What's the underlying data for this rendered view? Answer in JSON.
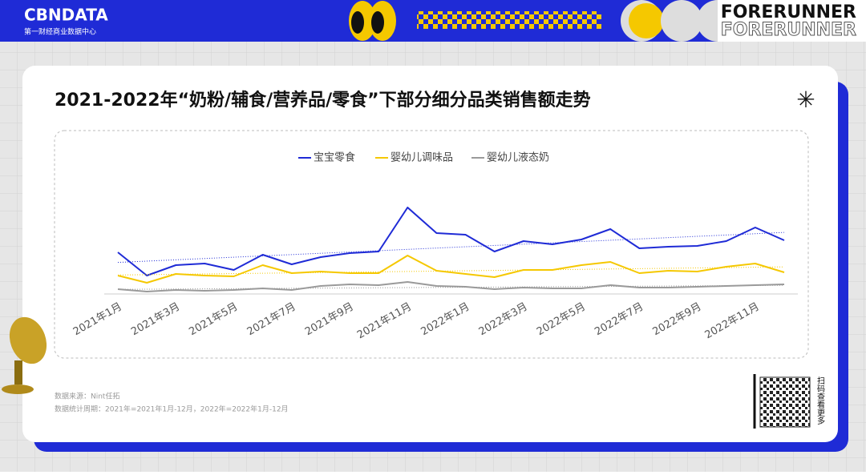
{
  "header": {
    "brand": "CBNDATA",
    "brand_subtitle": "第一财经商业数据中心",
    "tag": "FORERUNNER",
    "tag_outline": "FORERUNNER"
  },
  "chart_data": {
    "type": "line",
    "title": "2021-2022年“奶粉/辅食/营养品/零食”下部分细分品类销售额走势",
    "categories": [
      "2021年1月",
      null,
      "2021年3月",
      null,
      "2021年5月",
      null,
      "2021年7月",
      null,
      "2021年9月",
      null,
      "2021年11月",
      null,
      "2022年1月",
      null,
      "2022年3月",
      null,
      "2022年5月",
      null,
      "2022年7月",
      null,
      "2022年9月",
      null,
      "2022年11月",
      null
    ],
    "series": [
      {
        "name": "宝宝零食",
        "color": "#1f2bd6",
        "values": [
          52,
          23,
          36,
          38,
          30,
          49,
          37,
          46,
          51,
          53,
          108,
          76,
          74,
          53,
          66,
          62,
          68,
          81,
          57,
          59,
          60,
          66,
          83,
          67
        ]
      },
      {
        "name": "婴幼儿调味品",
        "color": "#f5c800",
        "values": [
          23,
          14,
          25,
          23,
          22,
          36,
          26,
          28,
          26,
          26,
          48,
          29,
          25,
          21,
          30,
          30,
          36,
          40,
          26,
          29,
          28,
          34,
          38,
          27
        ]
      },
      {
        "name": "婴幼儿液态奶",
        "color": "#9a9a9a",
        "values": [
          6,
          3,
          5,
          4,
          5,
          7,
          5,
          10,
          12,
          11,
          15,
          10,
          9,
          6,
          8,
          7,
          7,
          11,
          8,
          8,
          9,
          10,
          11,
          12
        ]
      }
    ],
    "ylim": [
      0,
      120
    ],
    "trendline": true,
    "legend": "top"
  },
  "footer": {
    "source": "数据来源：Nint任拓",
    "period": "数据统计周期：2021年=2021年1月-12月，2022年=2022年1月-12月",
    "qr_caption": "扫码查看更多"
  }
}
